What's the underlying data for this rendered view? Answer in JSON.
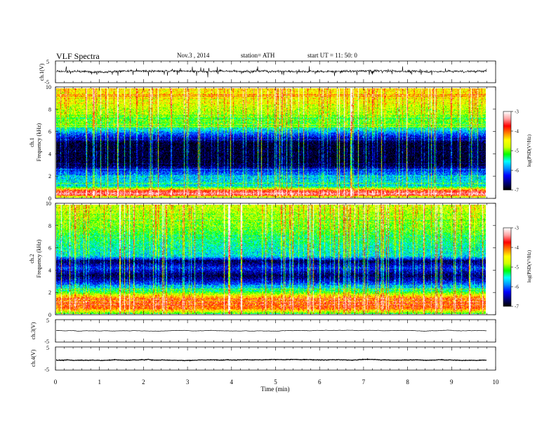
{
  "header": {
    "title": "VLF  Spectra",
    "date": "Nov.3  , 2014",
    "station": "station= ATH",
    "start": "start  UT  =    11: 50: 0"
  },
  "chart_data": [
    {
      "type": "line",
      "panel": "ch1-waveform",
      "ylabel": "ch.1(V)",
      "ylim": [
        -5,
        5
      ],
      "yticks": [
        "5",
        "-5"
      ],
      "xlim": [
        0,
        10
      ],
      "mean": 0.3,
      "noise_amplitude": 1.0,
      "data_end_min": 9.8,
      "color": "#000000"
    },
    {
      "type": "heatmap",
      "panel": "ch1-spectrogram",
      "ylabel": "ch.1\nFrequency  (kHz)",
      "ylabel_line1": "ch.1",
      "ylabel_line2": "Frequency  (kHz)",
      "ylim": [
        0,
        10
      ],
      "yticks": [
        "0",
        "2",
        "4",
        "6",
        "8",
        "10"
      ],
      "xlim": [
        0,
        10
      ],
      "data_end_min": 9.8,
      "colorbar": {
        "label": "log(PSD(V²/Hz)",
        "range": [
          -7,
          -3
        ],
        "ticks": [
          "-3",
          "-4",
          "-5",
          "-6",
          "-7"
        ]
      },
      "frequency_profile_logpsd": [
        {
          "f": 0.0,
          "v": -5.0
        },
        {
          "f": 0.3,
          "v": -3.3
        },
        {
          "f": 0.6,
          "v": -3.8
        },
        {
          "f": 1.0,
          "v": -5.5
        },
        {
          "f": 2.0,
          "v": -5.8
        },
        {
          "f": 2.5,
          "v": -6.3
        },
        {
          "f": 3.0,
          "v": -6.9
        },
        {
          "f": 5.0,
          "v": -6.9
        },
        {
          "f": 5.9,
          "v": -6.0
        },
        {
          "f": 6.5,
          "v": -5.2
        },
        {
          "f": 8.0,
          "v": -4.8
        },
        {
          "f": 10.0,
          "v": -4.4
        }
      ]
    },
    {
      "type": "heatmap",
      "panel": "ch2-spectrogram",
      "ylabel": "ch.2\nFrequency  (kHz)",
      "ylabel_line1": "ch.2",
      "ylabel_line2": "Frequency  (kHz)",
      "ylim": [
        0,
        10
      ],
      "yticks": [
        "0",
        "2",
        "4",
        "6",
        "8",
        "10"
      ],
      "xlim": [
        0,
        10
      ],
      "data_end_min": 9.8,
      "colorbar": {
        "label": "log(PSD(V²/Hz)",
        "range": [
          -7,
          -3
        ],
        "ticks": [
          "-3",
          "-4",
          "-5",
          "-6",
          "-7"
        ]
      },
      "frequency_profile_logpsd": [
        {
          "f": 0.0,
          "v": -5.2
        },
        {
          "f": 0.5,
          "v": -4.0
        },
        {
          "f": 1.5,
          "v": -4.2
        },
        {
          "f": 2.0,
          "v": -5.2
        },
        {
          "f": 3.0,
          "v": -6.4
        },
        {
          "f": 3.5,
          "v": -6.8
        },
        {
          "f": 4.2,
          "v": -6.2
        },
        {
          "f": 4.8,
          "v": -6.8
        },
        {
          "f": 5.3,
          "v": -5.6
        },
        {
          "f": 6.5,
          "v": -5.4
        },
        {
          "f": 8.0,
          "v": -5.0
        },
        {
          "f": 10.0,
          "v": -4.7
        }
      ]
    },
    {
      "type": "line",
      "panel": "ch3-waveform",
      "ylabel": "ch.3(V)",
      "ylim": [
        -5,
        5
      ],
      "yticks": [
        "5",
        "-5"
      ],
      "xlim": [
        0,
        10
      ],
      "mean": 0.2,
      "noise_amplitude": 0.08,
      "data_end_min": 9.8,
      "color": "#000000"
    },
    {
      "type": "line",
      "panel": "ch4-waveform",
      "ylabel": "ch.4(V)",
      "ylim": [
        -5,
        5
      ],
      "yticks": [
        "5",
        "-5"
      ],
      "xlim": [
        0,
        10
      ],
      "mean": -0.6,
      "noise_amplitude": 0.25,
      "data_end_min": 9.8,
      "color": "#000000"
    }
  ],
  "x_axis": {
    "label": "Time  (min)",
    "ticks": [
      "0",
      "1",
      "2",
      "3",
      "4",
      "5",
      "6",
      "7",
      "8",
      "9",
      "10"
    ],
    "range": [
      0,
      10
    ]
  },
  "colormap": [
    "#000000",
    "#000080",
    "#0000ff",
    "#0090ff",
    "#00ffff",
    "#00ff00",
    "#d0ff00",
    "#ffff00",
    "#ff8000",
    "#ff0000",
    "#ffa0a0",
    "#ffffff"
  ]
}
